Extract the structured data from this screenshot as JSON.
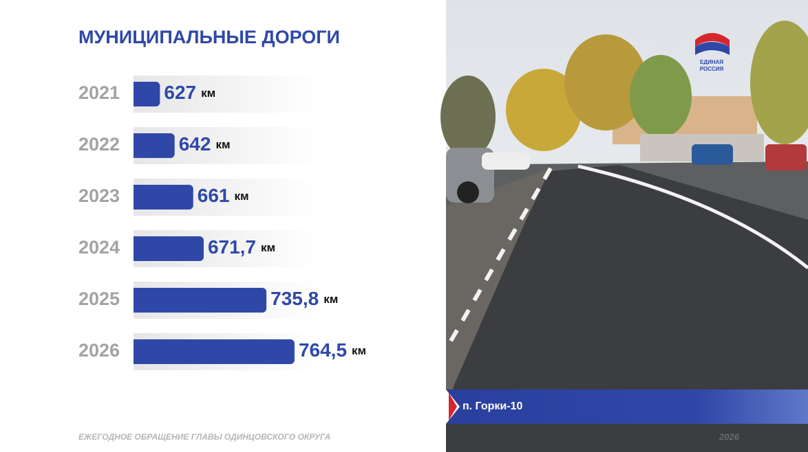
{
  "title": "МУНИЦИПАЛЬНЫЕ ДОРОГИ",
  "footer": "ЕЖЕГОДНОЕ ОБРАЩЕНИЕ ГЛАВЫ ОДИНЦОВСКОГО ОКРУГА",
  "photo_caption": "п. Горки-10",
  "photo_year": "2026",
  "logo": [
    "ЕДИНАЯ",
    "РОССИЯ"
  ],
  "chart_data": {
    "type": "bar",
    "orientation": "horizontal",
    "categories": [
      "2021",
      "2022",
      "2023",
      "2024",
      "2025",
      "2026"
    ],
    "values": [
      627,
      642,
      661,
      671.7,
      735.8,
      764.5
    ],
    "value_labels": [
      "627",
      "642",
      "661",
      "671,7",
      "735,8",
      "764,5"
    ],
    "unit": "км",
    "color": "#2f48a8",
    "xlim": [
      600,
      780
    ]
  }
}
